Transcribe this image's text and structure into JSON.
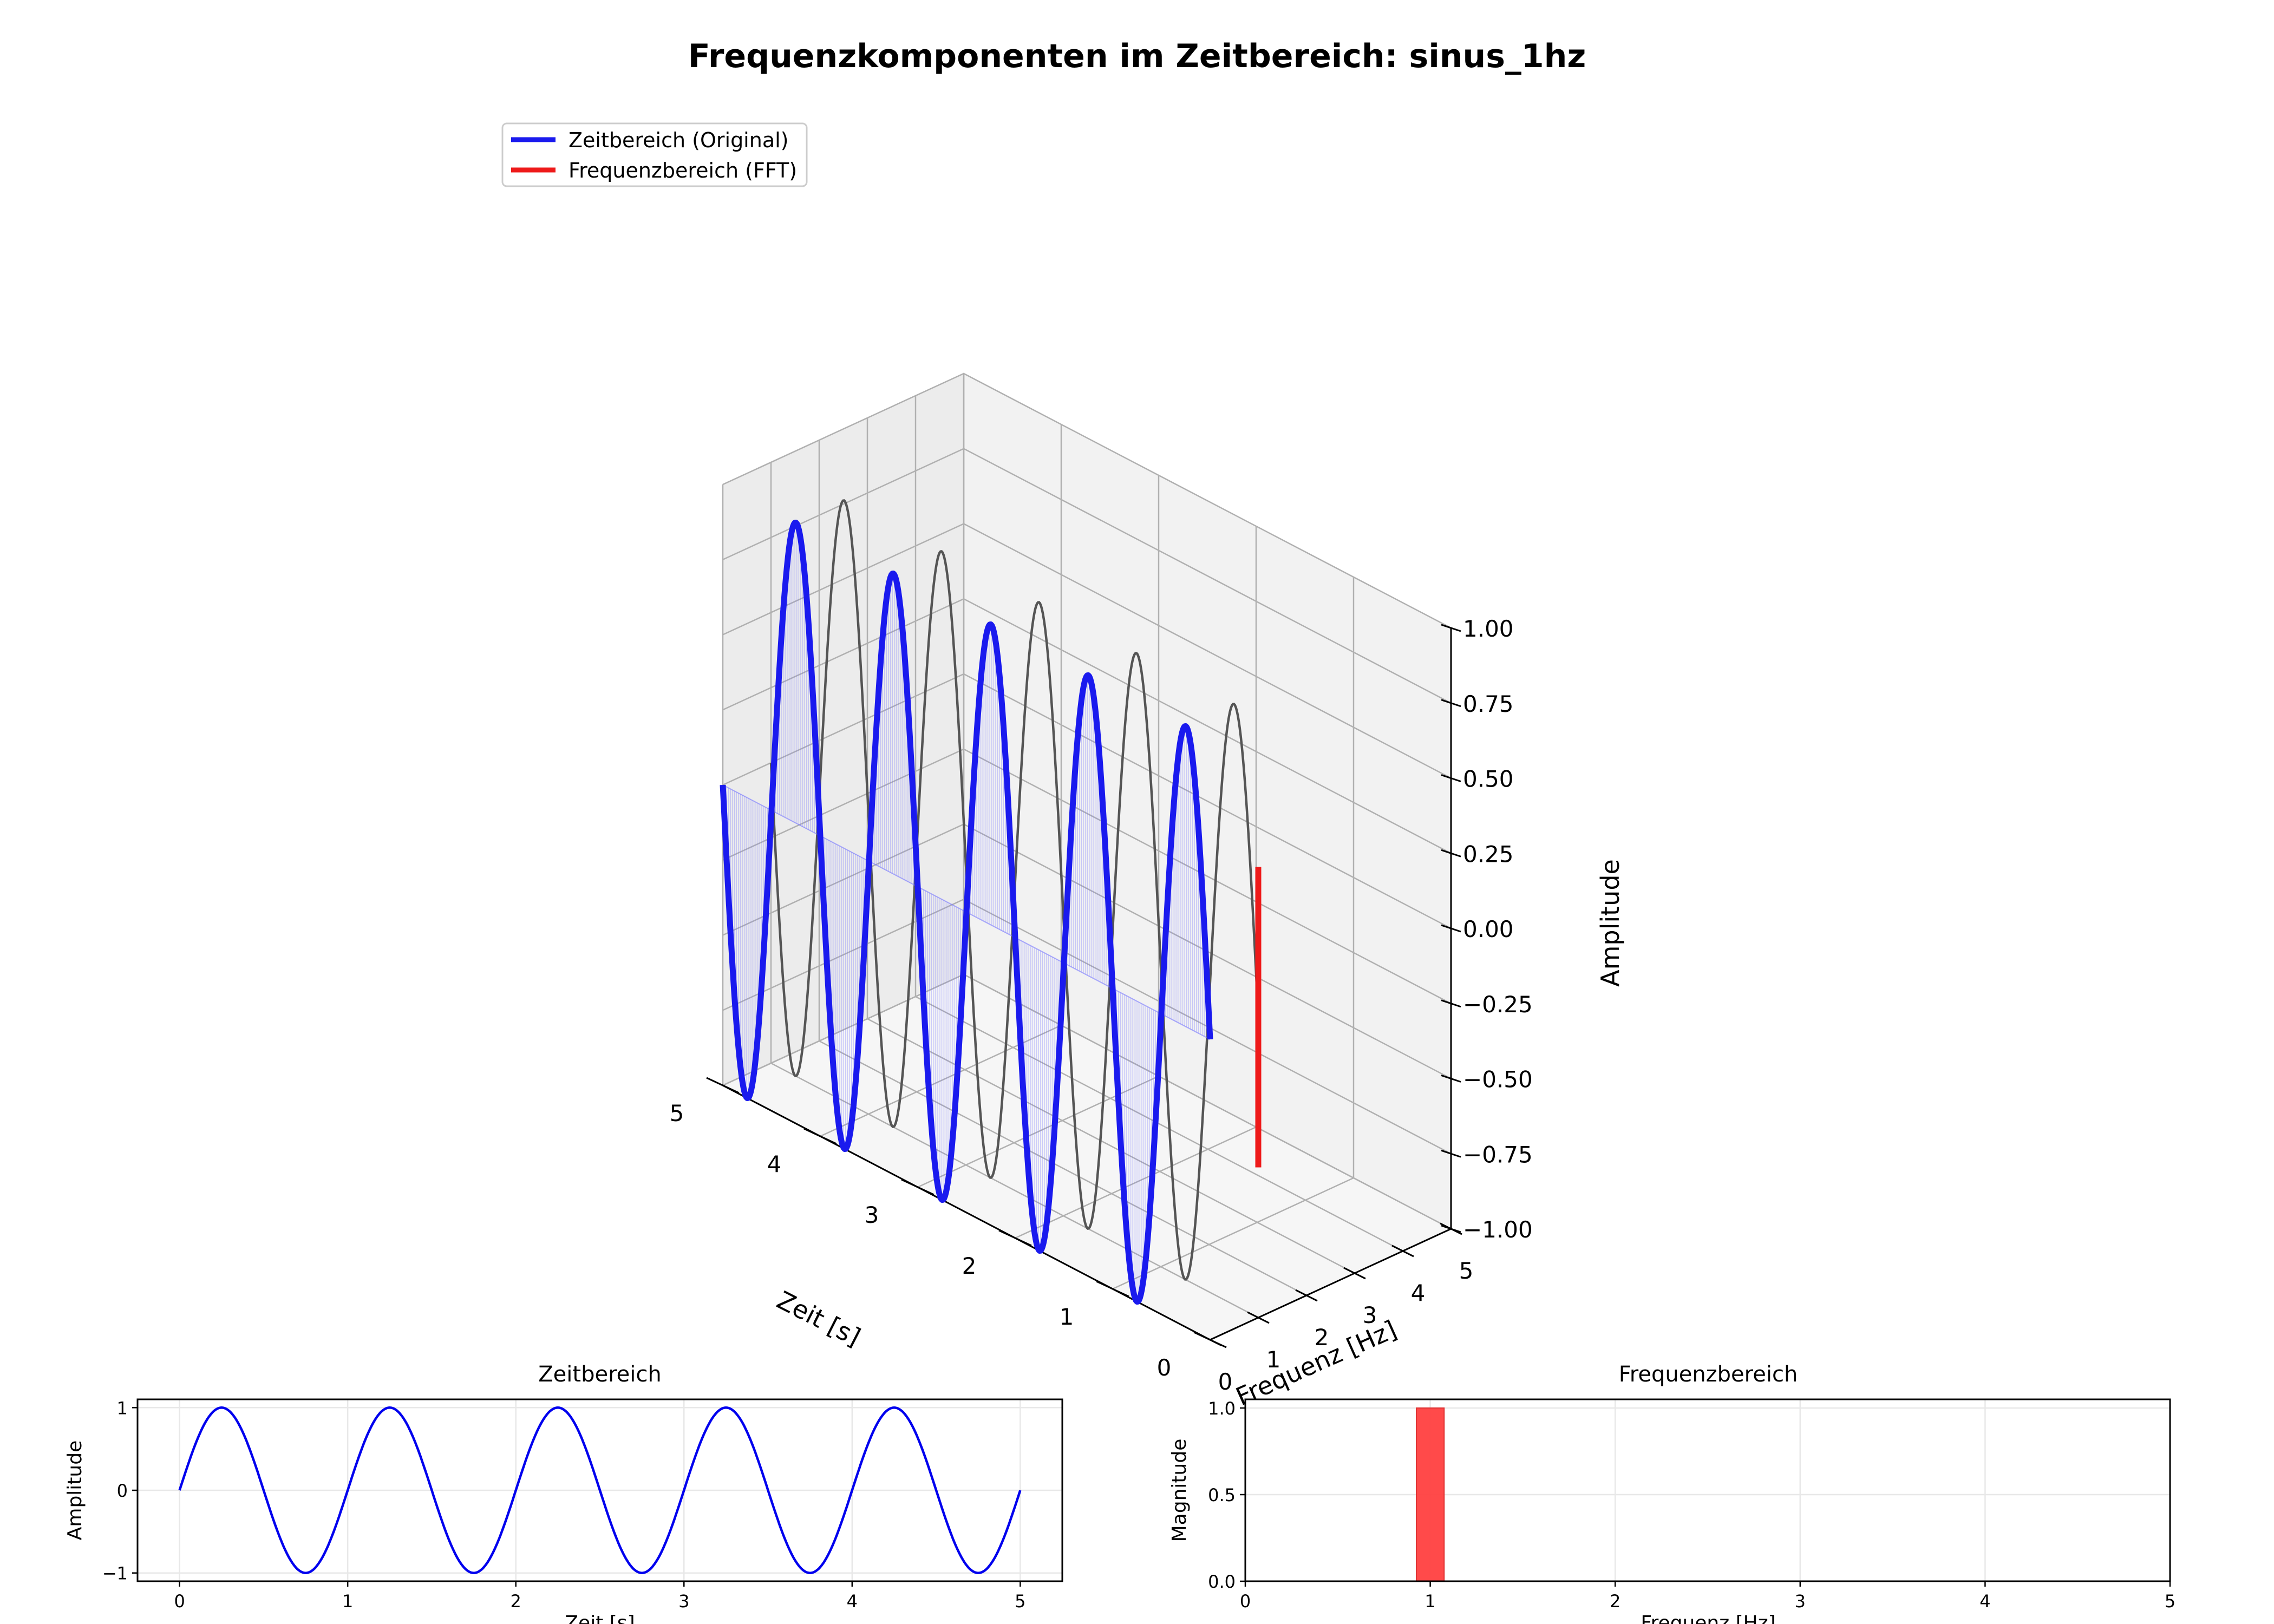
{
  "figure": {
    "title": "Frequenzkomponenten im Zeitbereich: sinus_1hz"
  },
  "legend": {
    "placement": "upper-left",
    "items": [
      {
        "label": "Zeitbereich (Original)",
        "color": "#1a1aee"
      },
      {
        "label": "Frequenzbereich (FFT)",
        "color": "#ee1a1a"
      }
    ]
  },
  "chart_data": [
    {
      "type": "line",
      "projection": "3d",
      "title": "",
      "xlabel": "Zeit [s]",
      "ylabel": "Frequenz [Hz]",
      "zlabel": "Amplitude",
      "xlim": [
        0,
        5
      ],
      "ylim": [
        0,
        5
      ],
      "zlim": [
        -1,
        1
      ],
      "xticks": [
        "0",
        "1",
        "2",
        "3",
        "4",
        "5"
      ],
      "yticks": [
        "0",
        "1",
        "2",
        "3",
        "4",
        "5"
      ],
      "zticks": [
        "−1.00",
        "−0.75",
        "−0.50",
        "−0.25",
        "0.00",
        "0.25",
        "0.50",
        "0.75",
        "1.00"
      ],
      "grid": true,
      "series": [
        {
          "name": "Zeitbereich (Original)",
          "color": "#1a1aee",
          "function": "sin(2π·1·t)",
          "frequency_hz": 1,
          "amplitude": 1,
          "t_range": [
            0,
            5
          ],
          "at_frequency": 0
        },
        {
          "name": "",
          "color": "#555555",
          "function": "sin(2π·1·t)",
          "frequency_hz": 1,
          "amplitude": 1,
          "t_range": [
            0,
            5
          ],
          "at_frequency": 1
        },
        {
          "name": "Frequenzbereich (FFT)",
          "color": "#ee1a1a",
          "type": "stem",
          "x": 0,
          "y": 1,
          "z": [
            -0.5,
            0.5
          ]
        }
      ]
    },
    {
      "type": "line",
      "title": "Zeitbereich",
      "xlabel": "Zeit [s]",
      "ylabel": "Amplitude",
      "xlim": [
        -0.25,
        5.25
      ],
      "ylim": [
        -1.1,
        1.1
      ],
      "xticks": [
        "0",
        "1",
        "2",
        "3",
        "4",
        "5"
      ],
      "yticks": [
        "−1",
        "0",
        "1"
      ],
      "grid": true,
      "series": [
        {
          "name": "",
          "color": "#0000ee",
          "function": "sin(2π·1·t)",
          "frequency_hz": 1,
          "amplitude": 1,
          "x_range": [
            0,
            5
          ]
        }
      ]
    },
    {
      "type": "bar",
      "title": "Frequenzbereich",
      "xlabel": "Frequenz [Hz]",
      "ylabel": "Magnitude",
      "xlim": [
        0,
        5
      ],
      "ylim": [
        0,
        1.05
      ],
      "xticks": [
        "0",
        "1",
        "2",
        "3",
        "4",
        "5"
      ],
      "yticks": [
        "0.0",
        "0.5",
        "1.0"
      ],
      "grid": true,
      "bars": [
        {
          "x": 1.0,
          "width": 0.15,
          "value": 1.0,
          "color": "#ff4040"
        }
      ]
    }
  ]
}
